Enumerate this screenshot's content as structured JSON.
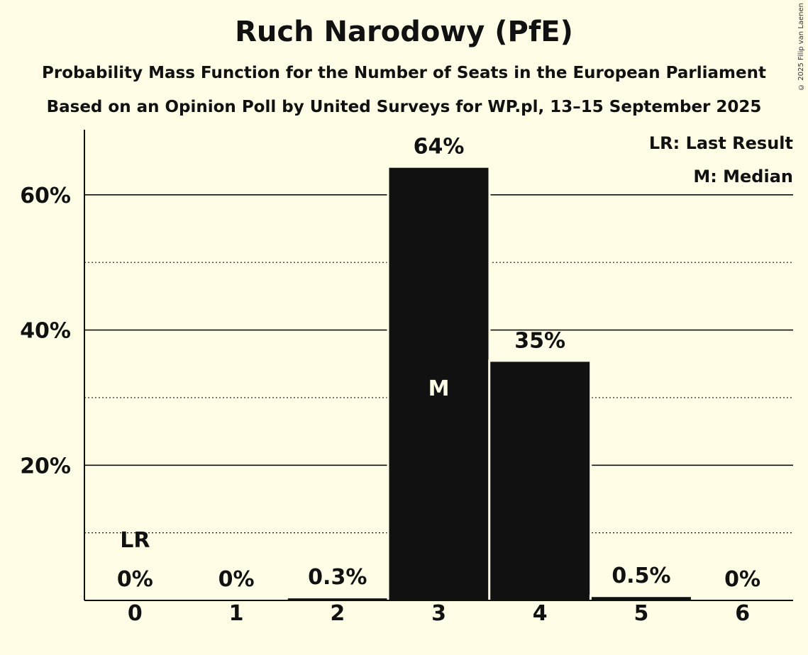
{
  "title": "Ruch Narodowy (PfE)",
  "subtitle1": "Probability Mass Function for the Number of Seats in the European Parliament",
  "subtitle2": "Based on an Opinion Poll by United Surveys for WP.pl, 13–15 September 2025",
  "copyright": "© 2025 Filip van Laenen",
  "legend": {
    "last_result": "LR: Last Result",
    "median": "M: Median"
  },
  "colors": {
    "background": "#fffde6",
    "bar": "#111111"
  },
  "chart_data": {
    "type": "bar",
    "categories": [
      "0",
      "1",
      "2",
      "3",
      "4",
      "5",
      "6"
    ],
    "values": [
      0,
      0,
      0.3,
      64,
      35.3,
      0.5,
      0
    ],
    "value_labels": [
      "0%",
      "0%",
      "0.3%",
      "64%",
      "35%",
      "0.5%",
      "0%"
    ],
    "y_ticks": [
      20,
      40,
      60
    ],
    "y_tick_labels": [
      "20%",
      "40%",
      "60%"
    ],
    "ylim": [
      0,
      70
    ],
    "grid": "solid lines at 20% steps, dotted lines at 10% steps",
    "last_result_category": "0",
    "last_result_label": "LR",
    "median_category": "3",
    "median_label": "M",
    "legend_placement": "top-right"
  }
}
